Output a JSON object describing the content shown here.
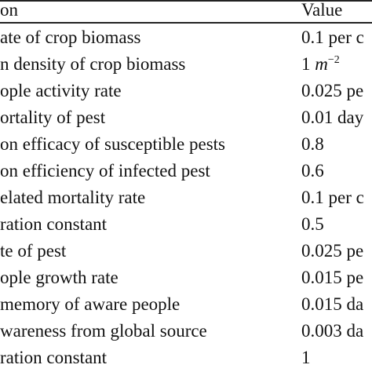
{
  "header": {
    "description": "on",
    "value": "Value"
  },
  "rows": [
    {
      "description": "ate of crop biomass",
      "value": "0.1 per c"
    },
    {
      "description": "n density of crop biomass",
      "value_prefix": "1 ",
      "value_var": "m",
      "value_sup": "−2"
    },
    {
      "description": "ople activity rate",
      "value": "0.025 pe"
    },
    {
      "description": "ortality of pest",
      "value": "0.01 day"
    },
    {
      "description": "on efficacy of susceptible pests",
      "value": "0.8"
    },
    {
      "description": "on efficiency of infected pest",
      "value": "0.6"
    },
    {
      "description": "elated mortality rate",
      "value": "0.1 per c"
    },
    {
      "description": "ration constant",
      "value": "0.5"
    },
    {
      "description": "te of pest",
      "value": "0.025 pe"
    },
    {
      "description": "ople growth rate",
      "value": "0.015 pe"
    },
    {
      "description": "memory of aware people",
      "value": "0.015 da"
    },
    {
      "description": "wareness from global source",
      "value": "0.003 da"
    },
    {
      "description": "ration constant",
      "value": "1"
    }
  ]
}
